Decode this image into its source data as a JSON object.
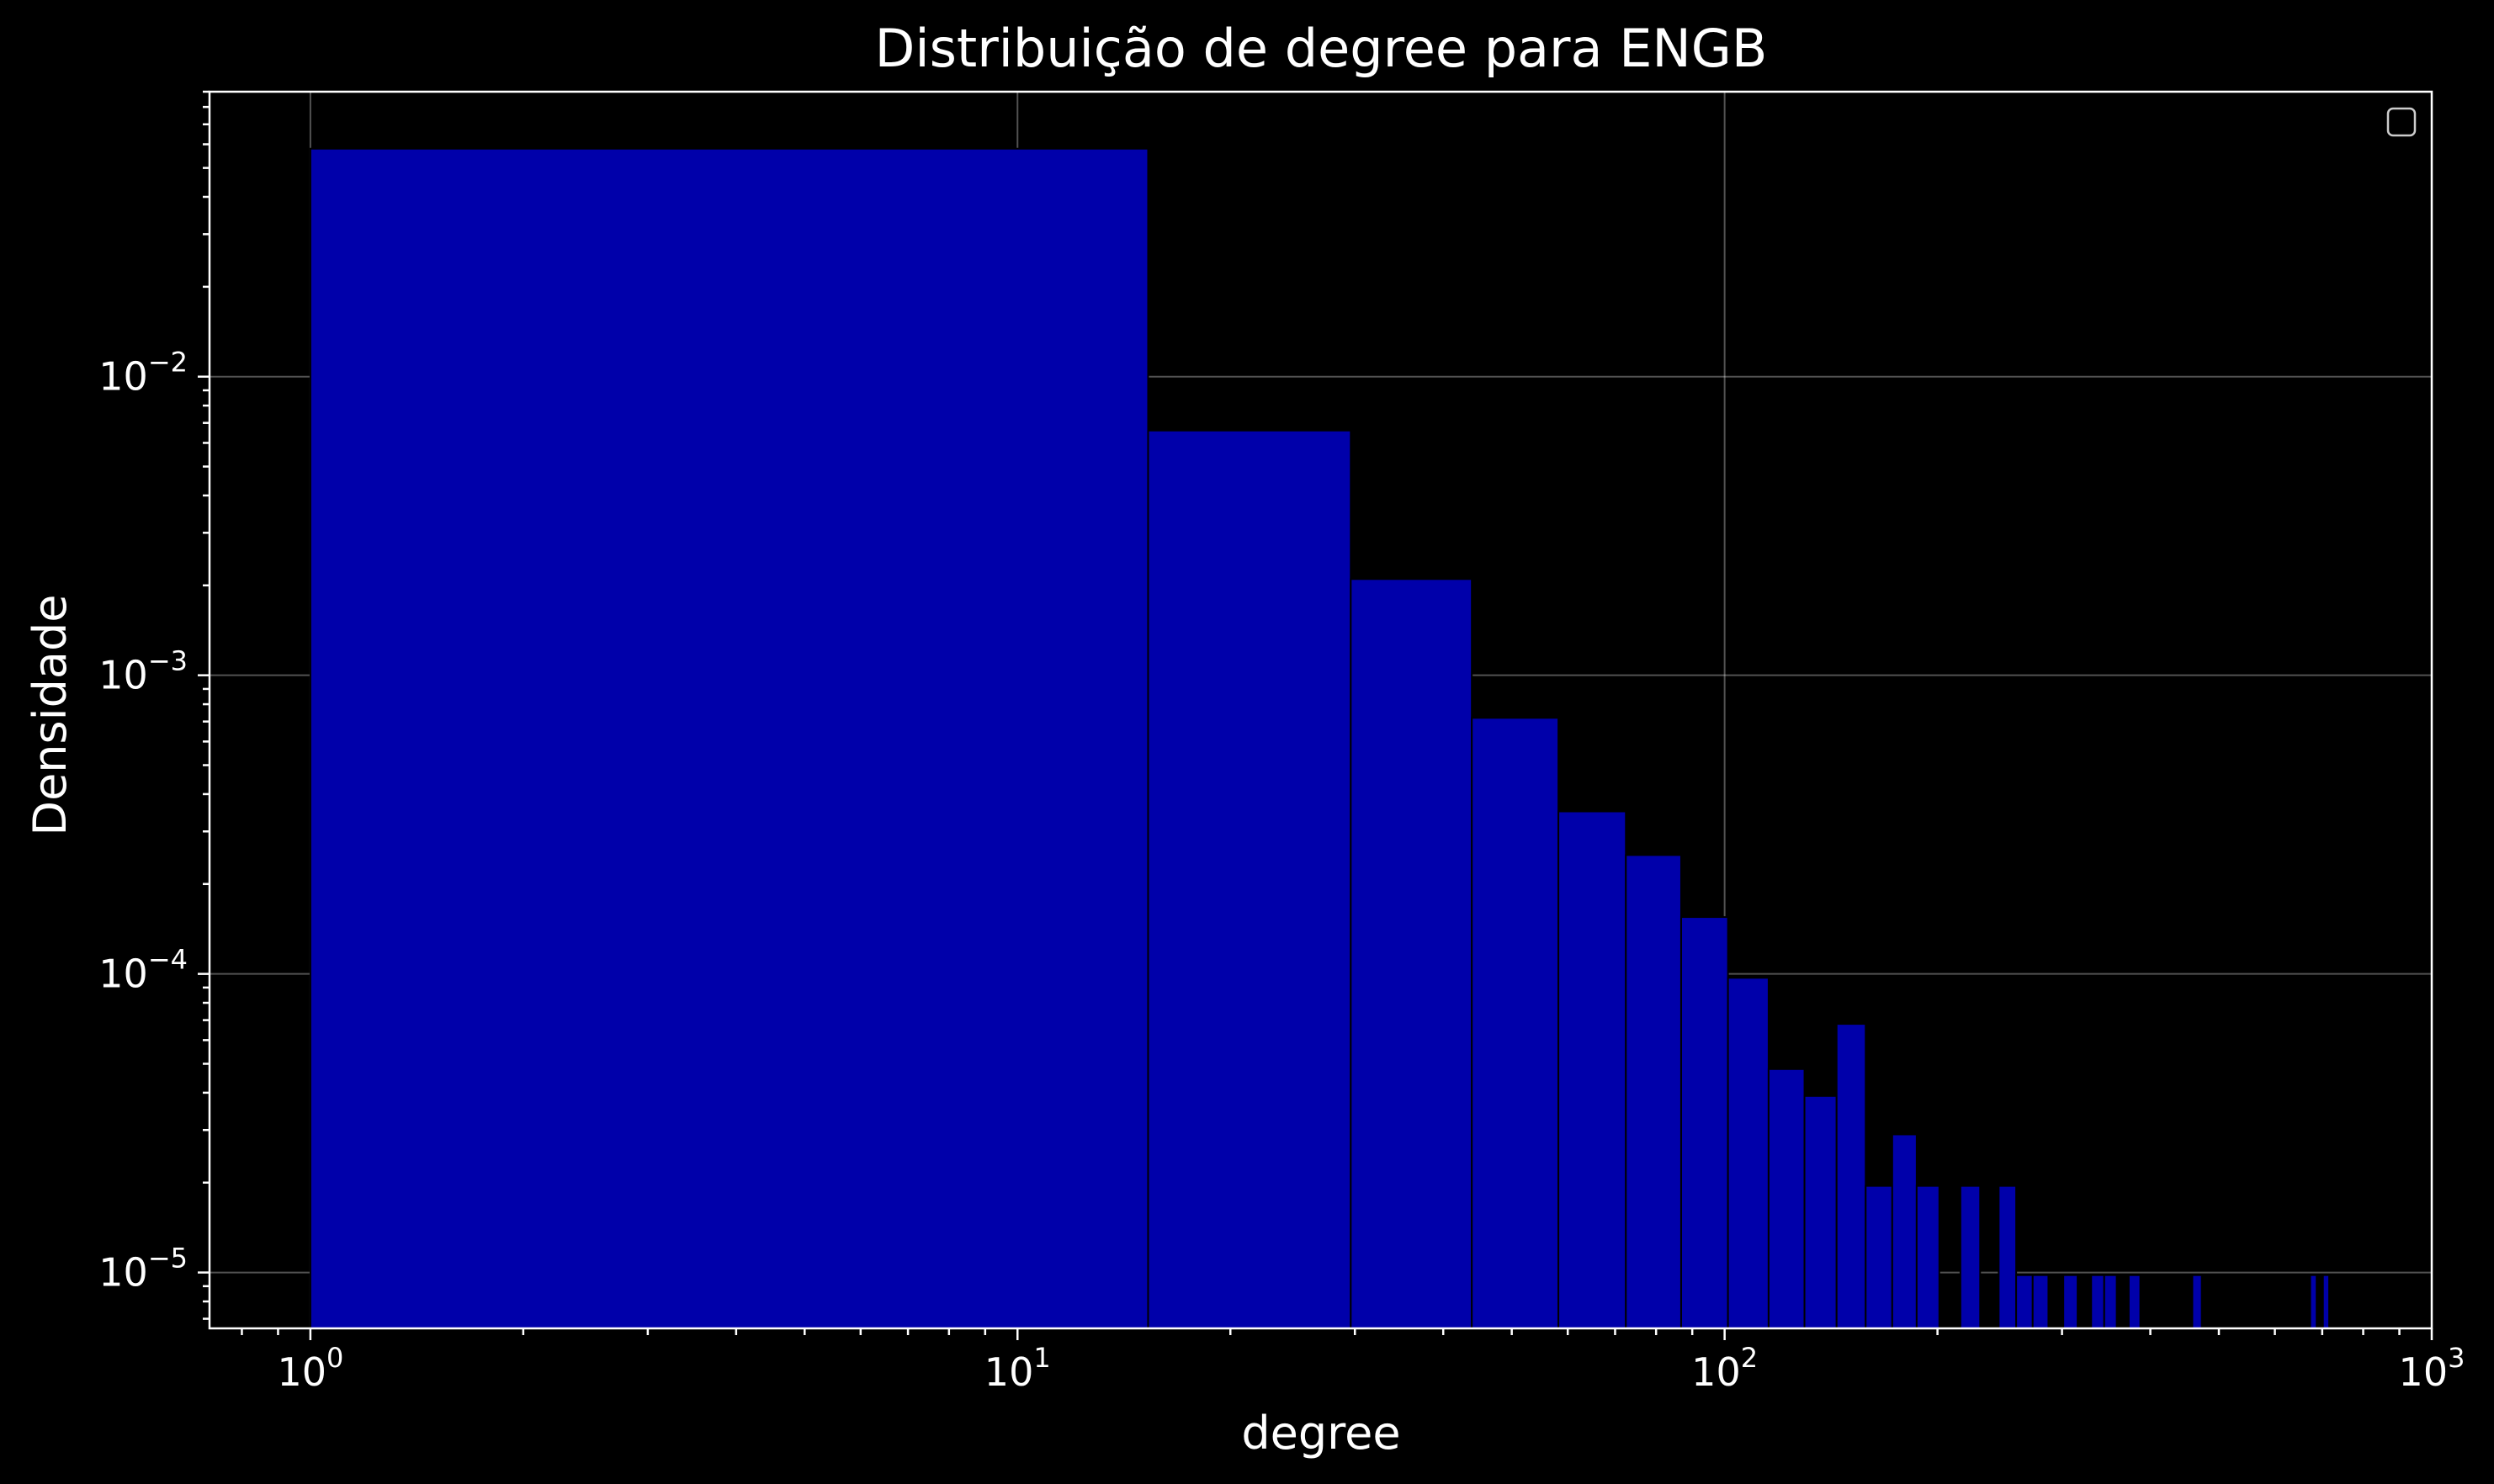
{
  "chart_data": {
    "type": "bar",
    "title": "Distribuição de degree para ENGB",
    "xlabel": "degree",
    "ylabel": "Densidade",
    "x_scale": "log",
    "y_scale": "log",
    "xlim": [
      0.72,
      1000
    ],
    "ylim": [
      6.5e-06,
      0.09
    ],
    "grid": true,
    "legend": "top-right (empty)",
    "bar_color": "#0000aa",
    "background": "#000000",
    "foreground": "#ffffff",
    "x_ticks": [
      {
        "base": "10",
        "exp": "0",
        "value": 1
      },
      {
        "base": "10",
        "exp": "1",
        "value": 10
      },
      {
        "base": "10",
        "exp": "2",
        "value": 100
      },
      {
        "base": "10",
        "exp": "3",
        "value": 1000
      }
    ],
    "y_ticks": [
      {
        "base": "10",
        "exp": "−2",
        "value": 0.01
      },
      {
        "base": "10",
        "exp": "−3",
        "value": 0.001
      },
      {
        "base": "10",
        "exp": "−4",
        "value": 0.0001
      },
      {
        "base": "10",
        "exp": "−5",
        "value": 1e-05
      }
    ],
    "bins": [
      {
        "x0": 1,
        "x1": 15.3,
        "density": 0.058
      },
      {
        "x0": 15.3,
        "x1": 29.6,
        "density": 0.0066
      },
      {
        "x0": 29.6,
        "x1": 43.9,
        "density": 0.0021
      },
      {
        "x0": 43.9,
        "x1": 58.2,
        "density": 0.00072
      },
      {
        "x0": 58.2,
        "x1": 72.5,
        "density": 0.00035
      },
      {
        "x0": 72.5,
        "x1": 86.8,
        "density": 0.00025
      },
      {
        "x0": 86.8,
        "x1": 101.1,
        "density": 0.000155
      },
      {
        "x0": 101.1,
        "x1": 115.4,
        "density": 9.7e-05
      },
      {
        "x0": 115.4,
        "x1": 129.7,
        "density": 4.8e-05
      },
      {
        "x0": 129.7,
        "x1": 144.0,
        "density": 3.9e-05
      },
      {
        "x0": 144.0,
        "x1": 158.3,
        "density": 6.8e-05
      },
      {
        "x0": 158.3,
        "x1": 172.6,
        "density": 1.95e-05
      },
      {
        "x0": 172.6,
        "x1": 186.9,
        "density": 2.9e-05
      },
      {
        "x0": 186.9,
        "x1": 201.2,
        "density": 1.95e-05
      },
      {
        "x0": 215.5,
        "x1": 229.8,
        "density": 1.95e-05
      },
      {
        "x0": 244.1,
        "x1": 258.4,
        "density": 1.95e-05
      },
      {
        "x0": 258.4,
        "x1": 272.7,
        "density": 9.8e-06
      },
      {
        "x0": 272.7,
        "x1": 287.0,
        "density": 9.8e-06
      },
      {
        "x0": 301.3,
        "x1": 315.6,
        "density": 9.8e-06
      },
      {
        "x0": 329.9,
        "x1": 344.2,
        "density": 9.8e-06
      },
      {
        "x0": 344.2,
        "x1": 358.5,
        "density": 9.8e-06
      },
      {
        "x0": 372.8,
        "x1": 387.1,
        "density": 9.8e-06
      },
      {
        "x0": 458.6,
        "x1": 472.9,
        "density": 9.8e-06
      },
      {
        "x0": 673.1,
        "x1": 687.4,
        "density": 9.8e-06
      },
      {
        "x0": 701.7,
        "x1": 716.0,
        "density": 9.8e-06
      }
    ]
  }
}
